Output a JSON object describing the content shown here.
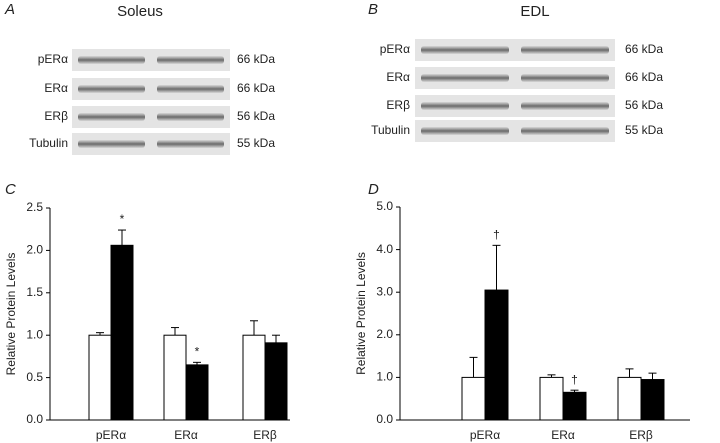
{
  "blots": [
    {
      "letter": "A",
      "title": "Soleus",
      "rows": [
        {
          "label": "pERα",
          "size": "66 kDa"
        },
        {
          "label": "ERα",
          "size": "66 kDa"
        },
        {
          "label": "ERβ",
          "size": "56 kDa"
        },
        {
          "label": "Tubulin",
          "size": "55 kDa"
        }
      ]
    },
    {
      "letter": "B",
      "title": "EDL",
      "rows": [
        {
          "label": "pERα",
          "size": "66 kDa"
        },
        {
          "label": "ERα",
          "size": "66 kDa"
        },
        {
          "label": "ERβ",
          "size": "56 kDa"
        },
        {
          "label": "Tubulin",
          "size": "55 kDa"
        }
      ]
    }
  ],
  "chart_data": [
    {
      "type": "bar",
      "letter": "C",
      "ylabel": "Relative Protein Levels",
      "categories": [
        "pERα",
        "ERα",
        "ERβ"
      ],
      "series": [
        {
          "color": "#ffffff",
          "values": [
            1.0,
            1.0,
            1.0
          ],
          "errors": [
            0.03,
            0.09,
            0.17
          ]
        },
        {
          "color": "#000000",
          "values": [
            2.06,
            0.65,
            0.91
          ],
          "errors": [
            0.18,
            0.03,
            0.09
          ],
          "annotations": [
            "*",
            "*",
            null
          ]
        }
      ],
      "ylim": [
        0,
        2.5
      ],
      "yticks": [
        {
          "value": 0,
          "label": "0.0"
        },
        {
          "value": 0.5,
          "label": "0.5"
        },
        {
          "value": 1,
          "label": "1.0"
        },
        {
          "value": 1.5,
          "label": "1.5"
        },
        {
          "value": 2,
          "label": "2.0"
        },
        {
          "value": 2.5,
          "label": "2.5"
        }
      ]
    },
    {
      "type": "bar",
      "letter": "D",
      "ylabel": "Relative Protein Levels",
      "categories": [
        "pERα",
        "ERα",
        "ERβ"
      ],
      "series": [
        {
          "color": "#ffffff",
          "values": [
            1.0,
            1.0,
            1.0
          ],
          "errors": [
            0.47,
            0.06,
            0.2
          ]
        },
        {
          "color": "#000000",
          "values": [
            3.05,
            0.65,
            0.95
          ],
          "errors": [
            1.05,
            0.05,
            0.15
          ],
          "annotations": [
            "†",
            "†",
            null
          ]
        }
      ],
      "ylim": [
        0,
        5
      ],
      "yticks": [
        {
          "value": 0,
          "label": "0.0"
        },
        {
          "value": 1,
          "label": "1.0"
        },
        {
          "value": 2,
          "label": "2.0"
        },
        {
          "value": 3,
          "label": "3.0"
        },
        {
          "value": 4,
          "label": "4.0"
        },
        {
          "value": 5,
          "label": "5.0"
        }
      ]
    }
  ]
}
